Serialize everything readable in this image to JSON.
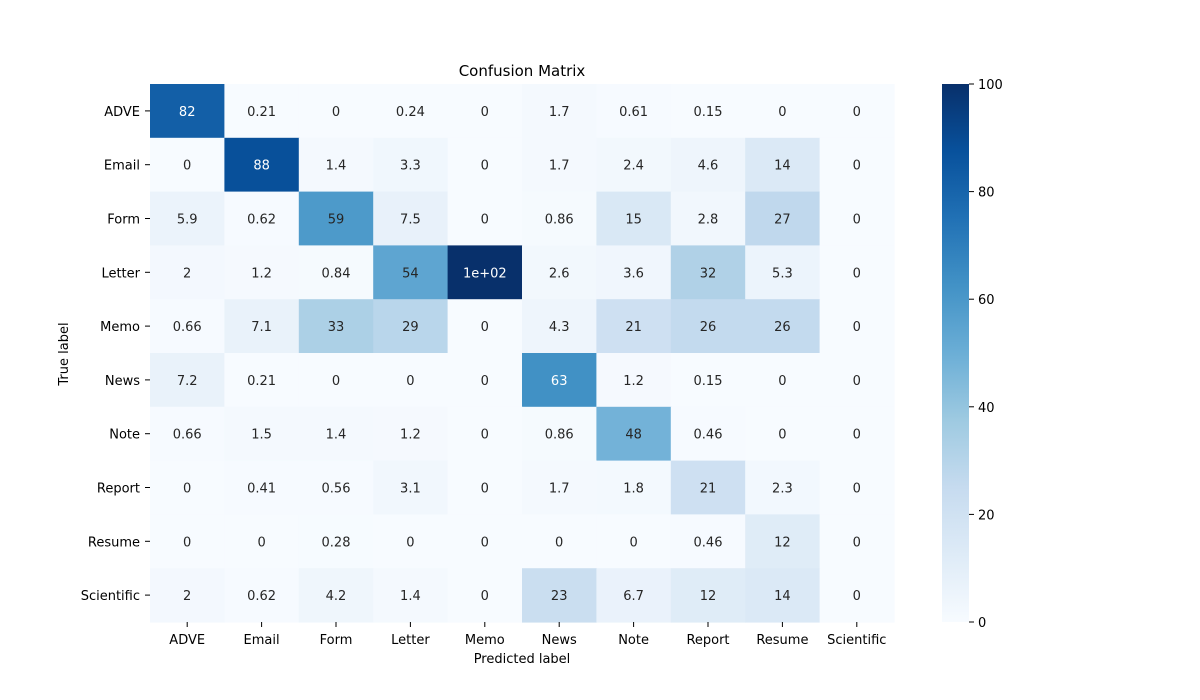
{
  "chart_data": {
    "type": "heatmap",
    "title": "Confusion Matrix",
    "xlabel": "Predicted label",
    "ylabel": "True label",
    "x_categories": [
      "ADVE",
      "Email",
      "Form",
      "Letter",
      "Memo",
      "News",
      "Note",
      "Report",
      "Resume",
      "Scientific"
    ],
    "y_categories": [
      "ADVE",
      "Email",
      "Form",
      "Letter",
      "Memo",
      "News",
      "Note",
      "Report",
      "Resume",
      "Scientific"
    ],
    "values": [
      [
        82,
        0.21,
        0,
        0.24,
        0,
        1.7,
        0.61,
        0.15,
        0,
        0
      ],
      [
        0,
        88,
        1.4,
        3.3,
        0,
        1.7,
        2.4,
        4.6,
        14,
        0
      ],
      [
        5.9,
        0.62,
        59,
        7.5,
        0,
        0.86,
        15,
        2.8,
        27,
        0
      ],
      [
        2,
        1.2,
        0.84,
        54,
        100,
        2.6,
        3.6,
        32,
        5.3,
        0
      ],
      [
        0.66,
        7.1,
        33,
        29,
        0,
        4.3,
        21,
        26,
        26,
        0
      ],
      [
        7.2,
        0.21,
        0,
        0,
        0,
        63,
        1.2,
        0.15,
        0,
        0
      ],
      [
        0.66,
        1.5,
        1.4,
        1.2,
        0,
        0.86,
        48,
        0.46,
        0,
        0
      ],
      [
        0,
        0.41,
        0.56,
        3.1,
        0,
        1.7,
        1.8,
        21,
        2.3,
        0
      ],
      [
        0,
        0,
        0.28,
        0,
        0,
        0,
        0,
        0.46,
        12,
        0
      ],
      [
        2,
        0.62,
        4.2,
        1.4,
        0,
        23,
        6.7,
        12,
        14,
        0
      ]
    ],
    "annotations": [
      [
        "82",
        "0.21",
        "0",
        "0.24",
        "0",
        "1.7",
        "0.61",
        "0.15",
        "0",
        "0"
      ],
      [
        "0",
        "88",
        "1.4",
        "3.3",
        "0",
        "1.7",
        "2.4",
        "4.6",
        "14",
        "0"
      ],
      [
        "5.9",
        "0.62",
        "59",
        "7.5",
        "0",
        "0.86",
        "15",
        "2.8",
        "27",
        "0"
      ],
      [
        "2",
        "1.2",
        "0.84",
        "54",
        "1e+02",
        "2.6",
        "3.6",
        "32",
        "5.3",
        "0"
      ],
      [
        "0.66",
        "7.1",
        "33",
        "29",
        "0",
        "4.3",
        "21",
        "26",
        "26",
        "0"
      ],
      [
        "7.2",
        "0.21",
        "0",
        "0",
        "0",
        "63",
        "1.2",
        "0.15",
        "0",
        "0"
      ],
      [
        "0.66",
        "1.5",
        "1.4",
        "1.2",
        "0",
        "0.86",
        "48",
        "0.46",
        "0",
        "0"
      ],
      [
        "0",
        "0.41",
        "0.56",
        "3.1",
        "0",
        "1.7",
        "1.8",
        "21",
        "2.3",
        "0"
      ],
      [
        "0",
        "0",
        "0.28",
        "0",
        "0",
        "0",
        "0",
        "0.46",
        "12",
        "0"
      ],
      [
        "2",
        "0.62",
        "4.2",
        "1.4",
        "0",
        "23",
        "6.7",
        "12",
        "14",
        "0"
      ]
    ],
    "colorbar": {
      "colormap": "Blues",
      "range": [
        0,
        100
      ],
      "ticks": [
        0,
        20,
        40,
        60,
        80,
        100
      ]
    }
  }
}
